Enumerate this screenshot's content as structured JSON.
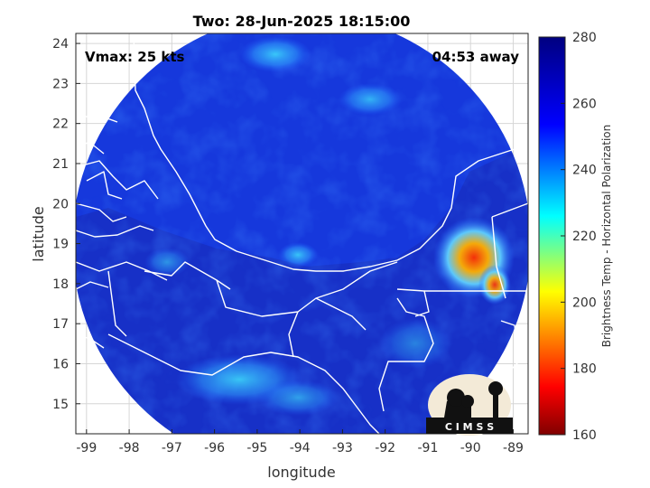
{
  "title": "Two: 28-Jun-2025 18:15:00",
  "annotations": {
    "vmax": "Vmax: 25 kts",
    "eta": "04:53 away"
  },
  "axes": {
    "xlabel": "longitude",
    "ylabel": "latitude",
    "xlim": [
      -99.25,
      -88.65
    ],
    "ylim": [
      14.25,
      24.25
    ],
    "xticks": [
      "-99",
      "-98",
      "-97",
      "-96",
      "-95",
      "-94",
      "-93",
      "-92",
      "-91",
      "-90",
      "-89"
    ],
    "yticks": [
      "15",
      "16",
      "17",
      "18",
      "19",
      "20",
      "21",
      "22",
      "23",
      "24"
    ],
    "grid": true
  },
  "colorbar": {
    "label": "Brightness Temp - Horizontal Polarization",
    "range": [
      160,
      280
    ],
    "ticks": [
      "280",
      "260",
      "240",
      "220",
      "200",
      "180",
      "160"
    ],
    "colormap": [
      "#800000",
      "#ff0000",
      "#ffff00",
      "#00ffff",
      "#0000ff",
      "#000080"
    ]
  },
  "logo": {
    "text": "C I M S S"
  },
  "colors": {
    "ocean": "#1238e0",
    "land": "#1a2fb8",
    "border": "#ffffff"
  }
}
